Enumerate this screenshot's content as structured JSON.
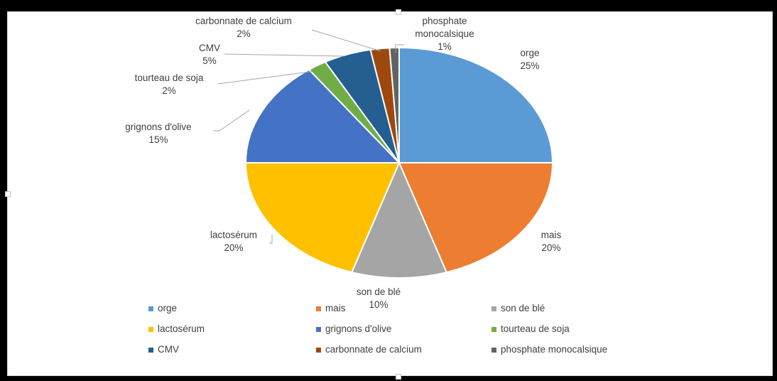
{
  "chart_data": {
    "type": "pie",
    "title": "",
    "legend_position": "bottom",
    "slices": [
      {
        "name": "orge",
        "value": 25,
        "label": "25%",
        "color": "#5b9bd5"
      },
      {
        "name": "mais",
        "value": 20,
        "label": "20%",
        "color": "#ed7d31"
      },
      {
        "name": "son de blé",
        "value": 10,
        "label": "10%",
        "color": "#a5a5a5"
      },
      {
        "name": "lactosérum",
        "value": 20,
        "label": "20%",
        "color": "#ffc000"
      },
      {
        "name": "grignons d'olive",
        "value": 15,
        "label": "15%",
        "color": "#4472c4"
      },
      {
        "name": "tourteau de soja",
        "value": 2,
        "label": "2%",
        "color": "#70ad47"
      },
      {
        "name": "CMV",
        "value": 5,
        "label": "5%",
        "color": "#255e91"
      },
      {
        "name": "carbonnate de calcium",
        "value": 2,
        "label": "2%",
        "color": "#9e480e"
      },
      {
        "name": "phosphate monocalsique",
        "value": 1,
        "label": "1%",
        "color": "#636363"
      }
    ]
  }
}
